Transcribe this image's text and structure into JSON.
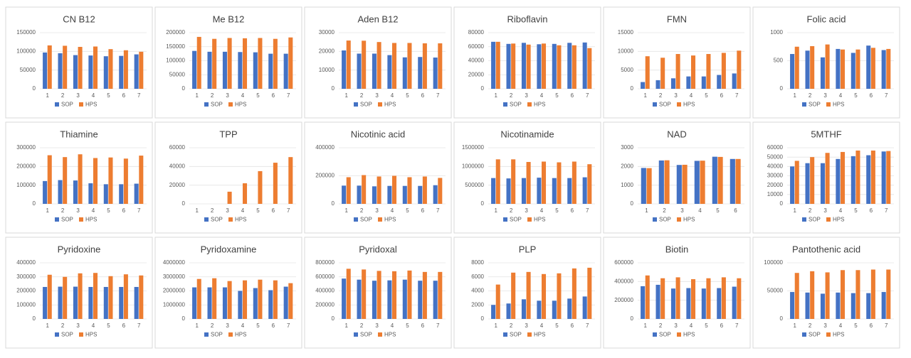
{
  "chart_data": [
    {
      "type": "bar",
      "title": "CN B12",
      "categories": [
        "1",
        "2",
        "3",
        "4",
        "5",
        "6",
        "7"
      ],
      "series": [
        {
          "name": "SOP",
          "color": "#4472c4",
          "values": [
            97000,
            95000,
            90000,
            89000,
            87000,
            88000,
            92000
          ]
        },
        {
          "name": "HPS",
          "color": "#ed7d31",
          "values": [
            116000,
            115000,
            112000,
            113000,
            106000,
            103000,
            99000
          ]
        }
      ],
      "ylim": [
        0,
        150000
      ],
      "yticks": [
        0,
        50000,
        100000,
        150000
      ]
    },
    {
      "type": "bar",
      "title": "Me B12",
      "categories": [
        "1",
        "2",
        "3",
        "4",
        "5",
        "6",
        "7"
      ],
      "series": [
        {
          "name": "SOP",
          "color": "#4472c4",
          "values": [
            135000,
            132000,
            132000,
            131000,
            130000,
            125000,
            125000
          ]
        },
        {
          "name": "HPS",
          "color": "#ed7d31",
          "values": [
            185000,
            178000,
            181000,
            180000,
            181000,
            178000,
            183000
          ]
        }
      ],
      "ylim": [
        0,
        200000
      ],
      "yticks": [
        0,
        50000,
        100000,
        150000,
        200000
      ]
    },
    {
      "type": "bar",
      "title": "Aden B12",
      "categories": [
        "1",
        "2",
        "3",
        "4",
        "5",
        "6",
        "7"
      ],
      "series": [
        {
          "name": "SOP",
          "color": "#4472c4",
          "values": [
            20500,
            18800,
            18800,
            18000,
            16800,
            17000,
            16700
          ]
        },
        {
          "name": "HPS",
          "color": "#ed7d31",
          "values": [
            25800,
            25700,
            25000,
            24500,
            24500,
            24300,
            24300
          ]
        }
      ],
      "ylim": [
        0,
        30000
      ],
      "yticks": [
        0,
        10000,
        20000,
        30000
      ]
    },
    {
      "type": "bar",
      "title": "Riboflavin",
      "categories": [
        "1",
        "2",
        "3",
        "4",
        "5",
        "6",
        "7"
      ],
      "series": [
        {
          "name": "SOP",
          "color": "#4472c4",
          "values": [
            67000,
            64000,
            65500,
            63500,
            64000,
            65500,
            66000
          ]
        },
        {
          "name": "HPS",
          "color": "#ed7d31",
          "values": [
            67000,
            64500,
            63000,
            64500,
            62000,
            62000,
            58000
          ]
        }
      ],
      "ylim": [
        0,
        80000
      ],
      "yticks": [
        0,
        20000,
        40000,
        60000,
        80000
      ]
    },
    {
      "type": "bar",
      "title": "FMN",
      "categories": [
        "1",
        "2",
        "3",
        "4",
        "5",
        "6",
        "7"
      ],
      "series": [
        {
          "name": "SOP",
          "color": "#4472c4",
          "values": [
            1800,
            2300,
            2800,
            3300,
            3300,
            3700,
            4100
          ]
        },
        {
          "name": "HPS",
          "color": "#ed7d31",
          "values": [
            8700,
            8300,
            9300,
            8900,
            9300,
            9600,
            10200
          ]
        }
      ],
      "ylim": [
        0,
        15000
      ],
      "yticks": [
        0,
        5000,
        10000,
        15000
      ]
    },
    {
      "type": "bar",
      "title": "Folic acid",
      "categories": [
        "1",
        "2",
        "3",
        "4",
        "5",
        "6",
        "7"
      ],
      "series": [
        {
          "name": "SOP",
          "color": "#4472c4",
          "values": [
            620,
            680,
            560,
            710,
            640,
            770,
            690
          ]
        },
        {
          "name": "HPS",
          "color": "#ed7d31",
          "values": [
            750,
            760,
            790,
            700,
            700,
            730,
            710
          ]
        }
      ],
      "ylim": [
        0,
        1000
      ],
      "yticks": [
        0,
        500,
        1000
      ]
    },
    {
      "type": "bar",
      "title": "Thiamine",
      "categories": [
        "1",
        "2",
        "3",
        "4",
        "5",
        "6",
        "7"
      ],
      "series": [
        {
          "name": "SOP",
          "color": "#4472c4",
          "values": [
            122000,
            127000,
            125000,
            110000,
            105000,
            105000,
            108000
          ]
        },
        {
          "name": "HPS",
          "color": "#ed7d31",
          "values": [
            260000,
            250000,
            265000,
            245000,
            248000,
            242000,
            258000
          ]
        }
      ],
      "ylim": [
        0,
        300000
      ],
      "yticks": [
        0,
        100000,
        200000,
        300000
      ]
    },
    {
      "type": "bar",
      "title": "TPP",
      "categories": [
        "1",
        "2",
        "3",
        "4",
        "5",
        "6",
        "7"
      ],
      "series": [
        {
          "name": "SOP",
          "color": "#4472c4",
          "values": [
            0,
            0,
            0,
            0,
            0,
            0,
            0
          ]
        },
        {
          "name": "HPS",
          "color": "#ed7d31",
          "values": [
            0,
            0,
            13000,
            22000,
            35000,
            44000,
            50000
          ]
        }
      ],
      "ylim": [
        0,
        60000
      ],
      "yticks": [
        0,
        20000,
        40000,
        60000
      ]
    },
    {
      "type": "bar",
      "title": "Nicotinic acid",
      "categories": [
        "1",
        "2",
        "3",
        "4",
        "5",
        "6",
        "7"
      ],
      "series": [
        {
          "name": "SOP",
          "color": "#4472c4",
          "values": [
            130000,
            130000,
            125000,
            128000,
            128000,
            128000,
            133000
          ]
        },
        {
          "name": "HPS",
          "color": "#ed7d31",
          "values": [
            190000,
            205000,
            195000,
            200000,
            190000,
            195000,
            185000
          ]
        }
      ],
      "ylim": [
        0,
        400000
      ],
      "yticks": [
        0,
        200000,
        400000
      ]
    },
    {
      "type": "bar",
      "title": "Nicotinamide",
      "categories": [
        "1",
        "2",
        "3",
        "4",
        "5",
        "6",
        "7"
      ],
      "series": [
        {
          "name": "SOP",
          "color": "#4472c4",
          "values": [
            690000,
            680000,
            690000,
            700000,
            690000,
            690000,
            710000
          ]
        },
        {
          "name": "HPS",
          "color": "#ed7d31",
          "values": [
            1190000,
            1190000,
            1120000,
            1130000,
            1110000,
            1130000,
            1060000
          ]
        }
      ],
      "ylim": [
        0,
        1500000
      ],
      "yticks": [
        0,
        500000,
        1000000,
        1500000
      ]
    },
    {
      "type": "bar",
      "title": "NAD",
      "categories": [
        "1",
        "2",
        "3",
        "4",
        "5",
        "6"
      ],
      "series": [
        {
          "name": "SOP",
          "color": "#4472c4",
          "values": [
            1920,
            2320,
            2080,
            2300,
            2520,
            2400
          ]
        },
        {
          "name": "HPS",
          "color": "#ed7d31",
          "values": [
            1910,
            2330,
            2090,
            2310,
            2510,
            2400
          ]
        }
      ],
      "ylim": [
        0,
        3000
      ],
      "yticks": [
        0,
        1000,
        2000,
        3000
      ]
    },
    {
      "type": "bar",
      "title": "5MTHF",
      "categories": [
        "1",
        "2",
        "3",
        "4",
        "5",
        "6",
        "7"
      ],
      "series": [
        {
          "name": "SOP",
          "color": "#4472c4",
          "values": [
            40000,
            43500,
            43500,
            48000,
            51000,
            52000,
            56000
          ]
        },
        {
          "name": "HPS",
          "color": "#ed7d31",
          "values": [
            46000,
            50000,
            54500,
            55500,
            57000,
            57000,
            56500
          ]
        }
      ],
      "ylim": [
        0,
        60000
      ],
      "yticks": [
        0,
        10000,
        20000,
        30000,
        40000,
        50000,
        60000
      ]
    },
    {
      "type": "bar",
      "title": "Pyridoxine",
      "categories": [
        "1",
        "2",
        "3",
        "4",
        "5",
        "6",
        "7"
      ],
      "series": [
        {
          "name": "SOP",
          "color": "#4472c4",
          "values": [
            228000,
            230000,
            230000,
            228000,
            228000,
            228000,
            228000
          ]
        },
        {
          "name": "HPS",
          "color": "#ed7d31",
          "values": [
            315000,
            300000,
            325000,
            328000,
            305000,
            318000,
            310000
          ]
        }
      ],
      "ylim": [
        0,
        400000
      ],
      "yticks": [
        0,
        100000,
        200000,
        300000,
        400000
      ]
    },
    {
      "type": "bar",
      "title": "Pyridoxamine",
      "categories": [
        "1",
        "2",
        "3",
        "4",
        "5",
        "6",
        "7"
      ],
      "series": [
        {
          "name": "SOP",
          "color": "#4472c4",
          "values": [
            2250000,
            2250000,
            2250000,
            2000000,
            2200000,
            2050000,
            2300000
          ]
        },
        {
          "name": "HPS",
          "color": "#ed7d31",
          "values": [
            2850000,
            2900000,
            2700000,
            2750000,
            2800000,
            2750000,
            2550000
          ]
        }
      ],
      "ylim": [
        0,
        4000000
      ],
      "yticks": [
        0,
        1000000,
        2000000,
        3000000,
        4000000
      ]
    },
    {
      "type": "bar",
      "title": "Pyridoxal",
      "categories": [
        "1",
        "2",
        "3",
        "4",
        "5",
        "6",
        "7"
      ],
      "series": [
        {
          "name": "SOP",
          "color": "#4472c4",
          "values": [
            575000,
            560000,
            545000,
            550000,
            560000,
            545000,
            545000
          ]
        },
        {
          "name": "HPS",
          "color": "#ed7d31",
          "values": [
            715000,
            705000,
            685000,
            680000,
            690000,
            670000,
            670000
          ]
        }
      ],
      "ylim": [
        0,
        800000
      ],
      "yticks": [
        0,
        200000,
        400000,
        600000,
        800000
      ]
    },
    {
      "type": "bar",
      "title": "PLP",
      "categories": [
        "1",
        "2",
        "3",
        "4",
        "5",
        "6",
        "7"
      ],
      "series": [
        {
          "name": "SOP",
          "color": "#4472c4",
          "values": [
            2000,
            2200,
            2800,
            2600,
            2600,
            2900,
            3200
          ]
        },
        {
          "name": "HPS",
          "color": "#ed7d31",
          "values": [
            4900,
            6600,
            6700,
            6400,
            6500,
            7200,
            7300
          ]
        }
      ],
      "ylim": [
        0,
        8000
      ],
      "yticks": [
        0,
        2000,
        4000,
        6000,
        8000
      ]
    },
    {
      "type": "bar",
      "title": "Biotin",
      "categories": [
        "1",
        "2",
        "3",
        "4",
        "5",
        "6",
        "7"
      ],
      "series": [
        {
          "name": "SOP",
          "color": "#4472c4",
          "values": [
            350000,
            365000,
            325000,
            330000,
            325000,
            330000,
            345000
          ]
        },
        {
          "name": "HPS",
          "color": "#ed7d31",
          "values": [
            465000,
            435000,
            445000,
            425000,
            435000,
            445000,
            435000
          ]
        }
      ],
      "ylim": [
        0,
        600000
      ],
      "yticks": [
        0,
        200000,
        400000,
        600000
      ]
    },
    {
      "type": "bar",
      "title": "Pantothenic acid",
      "categories": [
        "1",
        "2",
        "3",
        "4",
        "5",
        "6",
        "7"
      ],
      "series": [
        {
          "name": "SOP",
          "color": "#4472c4",
          "values": [
            48000,
            47000,
            45000,
            47000,
            46000,
            46000,
            48000
          ]
        },
        {
          "name": "HPS",
          "color": "#ed7d31",
          "values": [
            82000,
            85000,
            83000,
            87000,
            87000,
            88000,
            88000
          ]
        }
      ],
      "ylim": [
        0,
        100000
      ],
      "yticks": [
        0,
        50000,
        100000
      ]
    }
  ]
}
